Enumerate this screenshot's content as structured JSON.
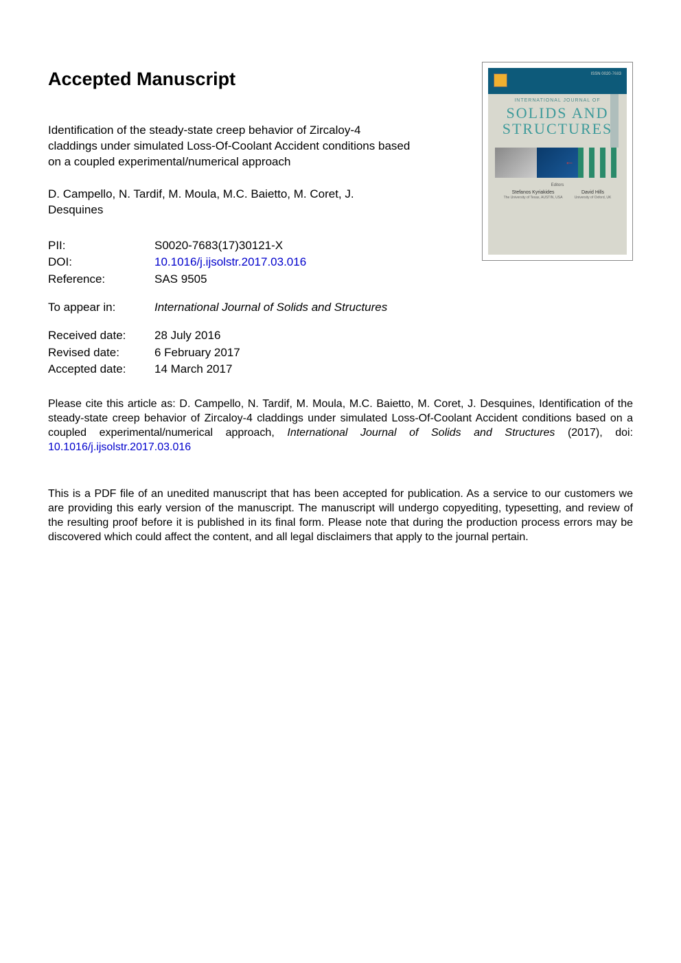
{
  "heading": "Accepted Manuscript",
  "article_title": "Identification of the steady-state creep behavior of Zircaloy-4 claddings under simulated Loss-Of-Coolant Accident conditions based on a coupled experimental/numerical approach",
  "authors": "D. Campello, N. Tardif, M. Moula, M.C. Baietto, M. Coret, J. Desquines",
  "meta": {
    "pii_label": "PII:",
    "pii_value": "S0020-7683(17)30121-X",
    "doi_label": "DOI:",
    "doi_value": "10.1016/j.ijsolstr.2017.03.016",
    "ref_label": "Reference:",
    "ref_value": "SAS 9505",
    "appear_label": "To appear in:",
    "appear_value": "International Journal of Solids and Structures",
    "received_label": "Received date:",
    "received_value": "28 July 2016",
    "revised_label": "Revised date:",
    "revised_value": "6 February 2017",
    "accepted_label": "Accepted date:",
    "accepted_value": "14 March 2017"
  },
  "cite": {
    "prefix": "Please cite this article as: D. Campello, N. Tardif, M. Moula, M.C. Baietto, M. Coret, J. Desquines, Identification of the steady-state creep behavior of Zircaloy-4 claddings under simulated Loss-Of-Coolant Accident conditions based on a coupled experimental/numerical approach, ",
    "journal": "International Journal of Solids and Structures",
    "year": " (2017), doi: ",
    "doi": "10.1016/j.ijsolstr.2017.03.016"
  },
  "disclaimer": "This is a PDF file of an unedited manuscript that has been accepted for publication. As a service to our customers we are providing this early version of the manuscript. The manuscript will undergo copyediting, typesetting, and review of the resulting proof before it is published in its final form. Please note that during the production process errors may be discovered which could affect the content, and all legal disclaimers that apply to the journal pertain.",
  "cover": {
    "issn": "ISSN 0020-7683",
    "intl": "INTERNATIONAL JOURNAL OF",
    "title_line1": "SOLIDS AND",
    "title_line2": "STRUCTURES",
    "editors_label": "Editors",
    "editor1_name": "Stefanos Kyriakides",
    "editor1_aff": "The University of Texas, AUSTIN, USA",
    "editor2_name": "David Hills",
    "editor2_aff": "University of Oxford, UK"
  },
  "colors": {
    "link": "#0000cc",
    "cover_dark": "#0d5a7a",
    "cover_light": "#d8d8ce",
    "cover_title": "#3d9a9a"
  }
}
